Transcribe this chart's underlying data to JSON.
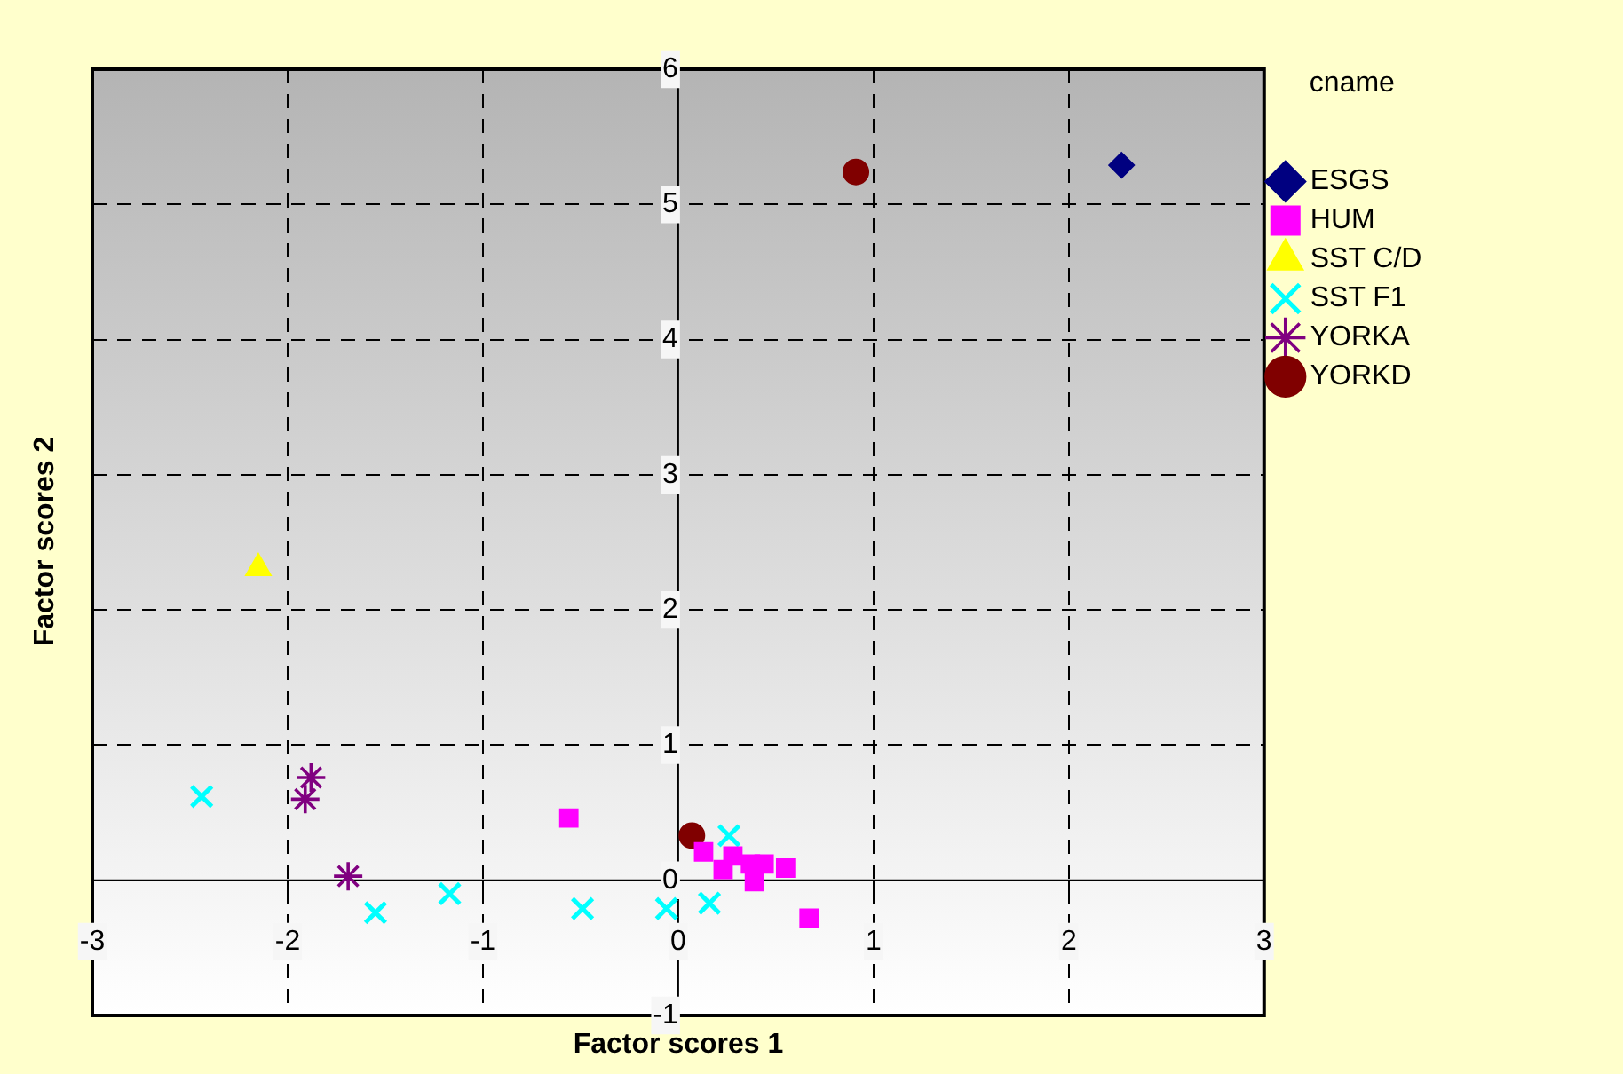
{
  "chart_data": {
    "type": "scatter",
    "xlabel": "Factor scores 1",
    "ylabel": "Factor scores 2",
    "legend_title": "cname",
    "legend": "top right",
    "grid": true,
    "xlim": [
      -3,
      3
    ],
    "ylim": [
      -1,
      6
    ],
    "xticks": [
      -3,
      -2,
      -1,
      0,
      1,
      2,
      3
    ],
    "yticks": [
      -1,
      0,
      1,
      2,
      3,
      4,
      5,
      6
    ],
    "series": [
      {
        "name": "ESGS",
        "color": "#000080",
        "marker": "diamond",
        "x": [
          2.27
        ],
        "values": [
          5.29
        ]
      },
      {
        "name": "HUM",
        "color": "#ff00ff",
        "marker": "square",
        "x": [
          -0.56,
          0.13,
          0.23,
          0.28,
          0.37,
          0.44,
          0.39,
          0.55,
          0.67
        ],
        "values": [
          0.46,
          0.21,
          0.08,
          0.18,
          0.12,
          0.12,
          -0.01,
          0.09,
          -0.28
        ]
      },
      {
        "name": "SST C/D",
        "color": "#ffff00",
        "marker": "triangle",
        "x": [
          -2.15
        ],
        "values": [
          2.31
        ]
      },
      {
        "name": "SST F1",
        "color": "#00ffff",
        "marker": "cross",
        "x": [
          -2.44,
          -1.55,
          -1.17,
          -0.49,
          -0.06,
          0.16,
          0.26
        ],
        "values": [
          0.62,
          -0.24,
          -0.1,
          -0.21,
          -0.21,
          -0.17,
          0.33
        ]
      },
      {
        "name": "YORKA",
        "color": "#800080",
        "x": [
          -1.88,
          -1.91,
          -1.69
        ],
        "values": [
          0.76,
          0.6,
          0.03
        ]
      },
      {
        "name": "YORKD",
        "color": "#800000",
        "marker": "circle",
        "x": [
          0.91,
          0.07
        ],
        "values": [
          5.24,
          0.33
        ]
      }
    ]
  }
}
